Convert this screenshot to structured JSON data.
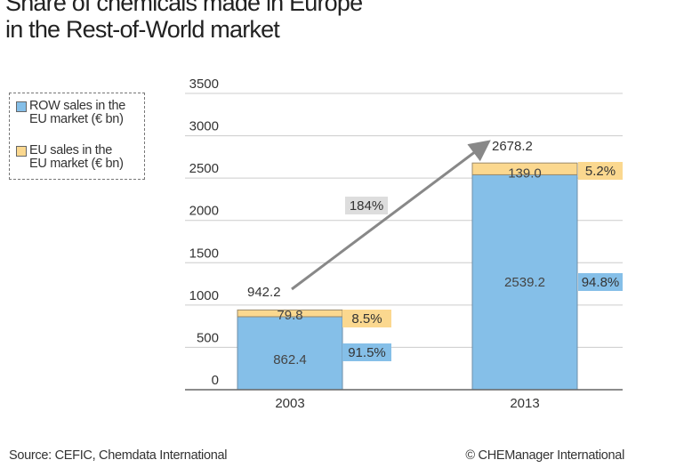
{
  "title": {
    "line1": "Share of chemicals made in Europe",
    "line2": "in the Rest-of-World market"
  },
  "legend": [
    {
      "label_line1": "ROW sales in the",
      "label_line2": "EU market (€ bn)",
      "color": "#85bfe8"
    },
    {
      "label_line1": "EU sales in the",
      "label_line2": "EU market (€ bn)",
      "color": "#fbd88f"
    }
  ],
  "footer": {
    "source": "Source: CEFIC, Chemdata International",
    "copyright": "© CHEManager International"
  },
  "chart_data": {
    "type": "bar",
    "stacked": true,
    "categories": [
      "2003",
      "2013"
    ],
    "series": [
      {
        "name": "ROW sales in the EU market (€ bn)",
        "values": [
          862.4,
          2539.2
        ],
        "value_labels": [
          "862.4",
          "2539.2"
        ],
        "share_labels": [
          "91.5%",
          "94.8%"
        ],
        "color": "#85bfe8"
      },
      {
        "name": "EU sales in the EU market (€ bn)",
        "values": [
          79.8,
          139.0
        ],
        "value_labels": [
          "79.8",
          "139.0"
        ],
        "share_labels": [
          "8.5%",
          "5.2%"
        ],
        "color": "#fbd88f"
      }
    ],
    "totals": [
      942.2,
      2678.2
    ],
    "total_labels": [
      "942.2",
      "2678.2"
    ],
    "growth_annotation": "184%",
    "yticks": [
      "0",
      "500",
      "1000",
      "1500",
      "2000",
      "2500",
      "3000",
      "3500"
    ],
    "ylim": [
      0,
      3500
    ],
    "grid": true,
    "legend_position": "left"
  }
}
